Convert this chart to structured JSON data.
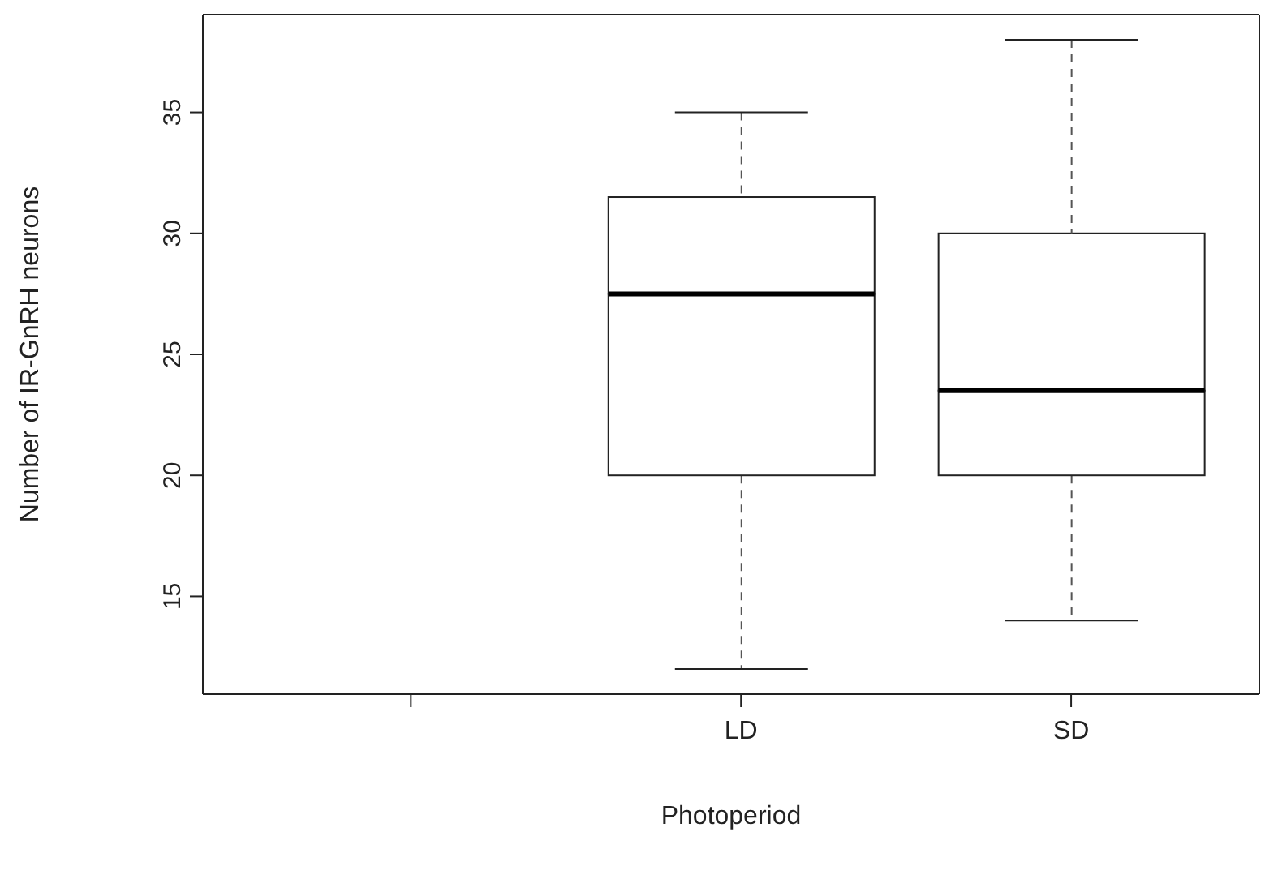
{
  "chart_data": {
    "type": "box",
    "categories": [
      null,
      "LD",
      "SD"
    ],
    "boxes": [
      null,
      {
        "low": 12,
        "q1": 20,
        "median": 27.5,
        "q3": 31.5,
        "high": 35
      },
      {
        "low": 14,
        "q1": 20,
        "median": 23.5,
        "q3": 30,
        "high": 38
      }
    ],
    "xlabel": "Photoperiod",
    "ylabel": "Number of IR-GnRH neurons",
    "ylim": [
      10.96,
      39.04
    ],
    "yticks": [
      15,
      20,
      25,
      30,
      35
    ],
    "grid": false
  }
}
